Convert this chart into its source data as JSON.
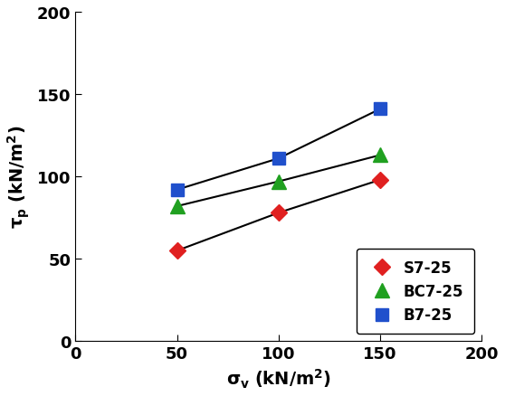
{
  "series": [
    {
      "label": "S7-25",
      "x": [
        50,
        100,
        150
      ],
      "y": [
        55,
        78,
        98
      ],
      "color": "#e02020",
      "marker": "D",
      "markersize": 9
    },
    {
      "label": "BC7-25",
      "x": [
        50,
        100,
        150
      ],
      "y": [
        82,
        97,
        113
      ],
      "color": "#20a020",
      "marker": "^",
      "markersize": 11
    },
    {
      "label": "B7-25",
      "x": [
        50,
        100,
        150
      ],
      "y": [
        92,
        111,
        141
      ],
      "color": "#2050cc",
      "marker": "s",
      "markersize": 10
    }
  ],
  "xlabel": "$\\mathbf{\\sigma_v}$ $\\mathbf{(kN/m^2)}$",
  "ylabel": "$\\mathbf{\\tau_p}$ $\\mathbf{(kN/m^2)}$",
  "xlim": [
    0,
    200
  ],
  "ylim": [
    0,
    200
  ],
  "xticks": [
    0,
    50,
    100,
    150,
    200
  ],
  "yticks": [
    0,
    50,
    100,
    150,
    200
  ],
  "line_color": "#000000",
  "line_width": 1.5,
  "label_fontsize": 14,
  "tick_fontsize": 13,
  "legend_fontsize": 12
}
